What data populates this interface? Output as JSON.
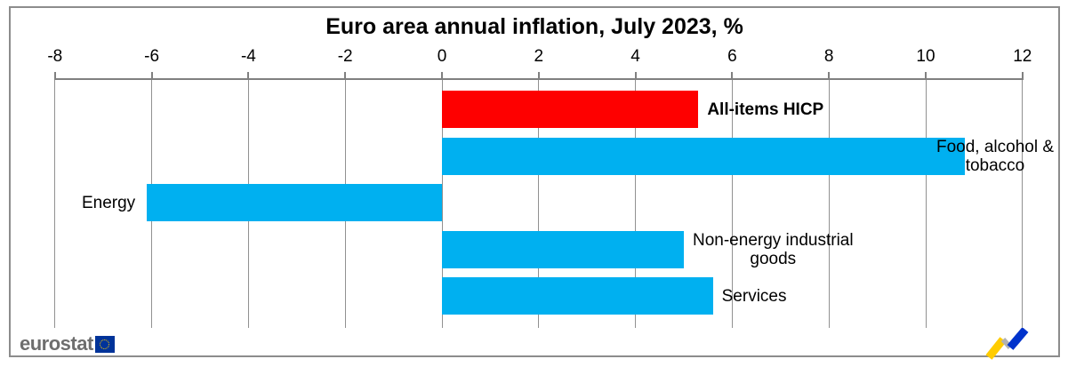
{
  "chart_data": {
    "type": "bar",
    "orientation": "horizontal",
    "title": "Euro area annual inflation, July 2023, %",
    "x_axis": {
      "min": -8,
      "max": 12,
      "tick_step": 2,
      "ticks": [
        -8,
        -6,
        -4,
        -2,
        0,
        2,
        4,
        6,
        8,
        10,
        12
      ]
    },
    "grid": true,
    "legend": "none",
    "bars": [
      {
        "category": "All-items HICP",
        "value": 5.3,
        "color": "#fe0000",
        "label_lines": [
          "All-items HICP"
        ],
        "label_bold": true,
        "label_anchor": "bar-end"
      },
      {
        "category": "Food, alcohol & tobacco",
        "value": 10.8,
        "color": "#00b0f0",
        "label_lines": [
          "Food, alcohol &",
          "tobacco"
        ],
        "label_bold": false,
        "label_anchor": "frame-right"
      },
      {
        "category": "Energy",
        "value": -6.1,
        "color": "#00b0f0",
        "label_lines": [
          "Energy"
        ],
        "label_bold": false,
        "label_anchor": "bar-start-left"
      },
      {
        "category": "Non-energy industrial goods",
        "value": 5.0,
        "color": "#00b0f0",
        "label_lines": [
          "Non-energy industrial",
          "goods"
        ],
        "label_bold": false,
        "label_anchor": "bar-end"
      },
      {
        "category": "Services",
        "value": 5.6,
        "color": "#00b0f0",
        "label_lines": [
          "Services"
        ],
        "label_bold": false,
        "label_anchor": "bar-end"
      }
    ]
  },
  "footer": {
    "brand": "eurostat"
  },
  "colors": {
    "axis": "#808080",
    "grid": "#919191",
    "frame": "#8c8c8c",
    "flag_blue": "#003399",
    "flag_stars": "#ffcc00",
    "brand_gray": "#6e6e6e",
    "zigzag_yellow": "#ffcc00",
    "zigzag_gray": "#b2b2b2",
    "zigzag_blue": "#0033cc"
  }
}
